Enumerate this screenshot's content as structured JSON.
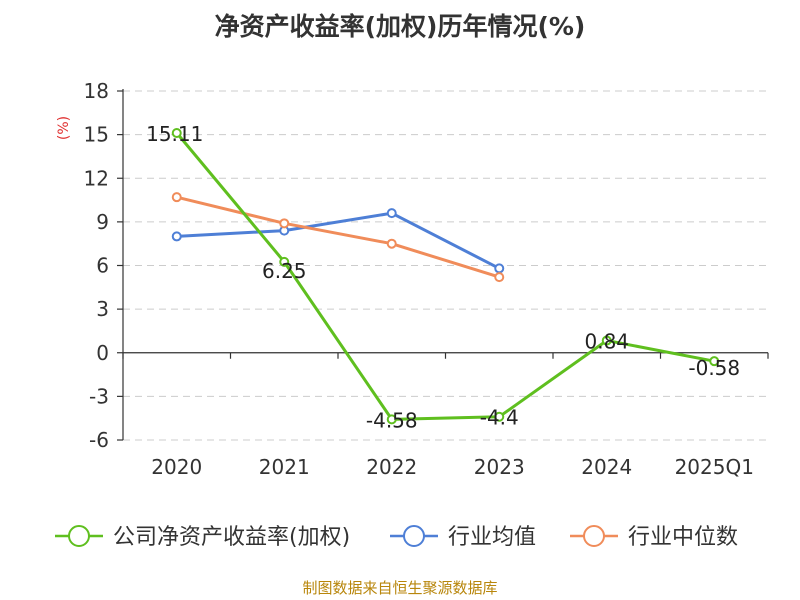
{
  "colors": {
    "company": "#5fbf1f",
    "industry_avg": "#4e7fd6",
    "industry_median": "#f08c5a"
  },
  "chart_data": {
    "type": "line",
    "title": "净资产收益率(加权)历年情况(%)",
    "ylabel": "(%)",
    "xlabel": "",
    "categories": [
      "2020",
      "2021",
      "2022",
      "2023",
      "2024",
      "2025Q1"
    ],
    "ylim": [
      -6,
      18
    ],
    "yticks": [
      18,
      15,
      12,
      9,
      6,
      3,
      0,
      -3,
      -6
    ],
    "grid": true,
    "legend_position": "bottom",
    "series": [
      {
        "name": "公司净资产收益率(加权)",
        "color": "#5fbf1f",
        "values": [
          15.11,
          6.25,
          -4.58,
          -4.4,
          0.84,
          -0.58
        ],
        "labels": [
          "15.11",
          "6.25",
          "-4.58",
          "-4.4",
          "0.84",
          "-0.58"
        ],
        "marker_on_all": false
      },
      {
        "name": "行业均值",
        "color": "#4e7fd6",
        "values": [
          8.0,
          8.4,
          9.6,
          5.8,
          null,
          null
        ]
      },
      {
        "name": "行业中位数",
        "color": "#f08c5a",
        "values": [
          10.7,
          8.9,
          7.5,
          5.2,
          null,
          null
        ]
      }
    ],
    "source": "制图数据来自恒生聚源数据库"
  }
}
